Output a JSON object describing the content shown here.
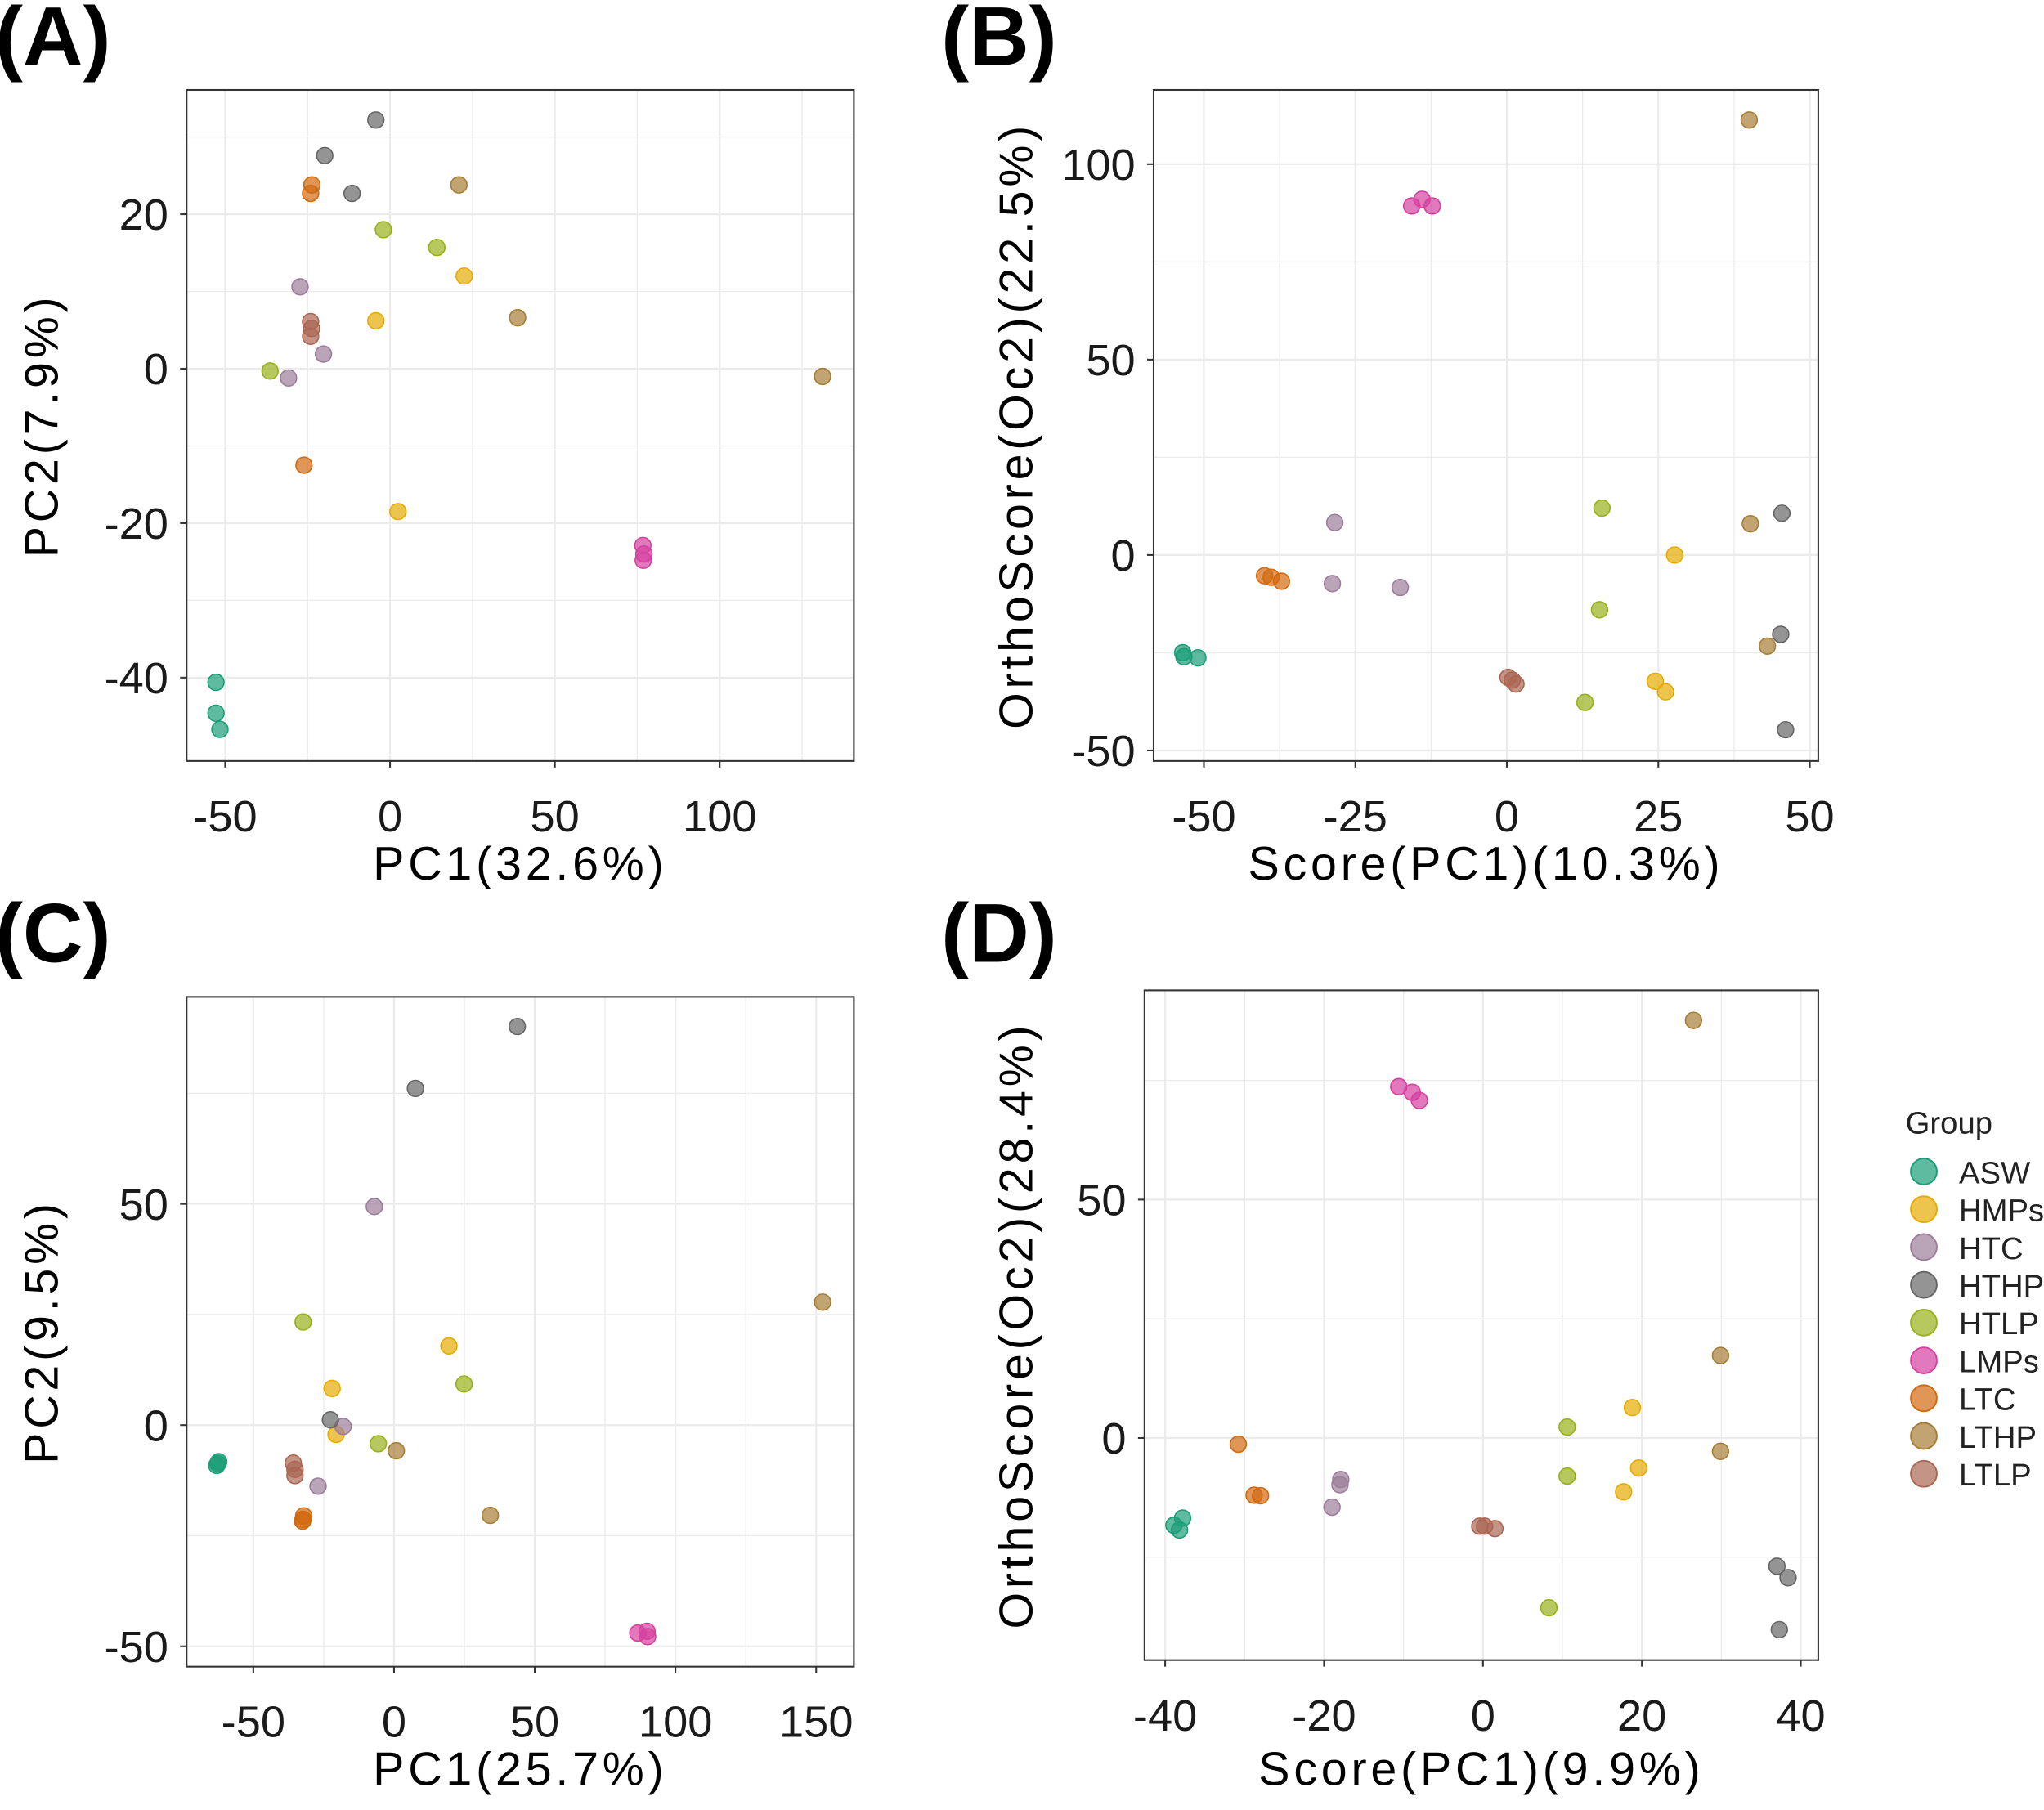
{
  "legend": {
    "title": "Group",
    "groups": [
      {
        "name": "ASW",
        "color": "#1b9e77"
      },
      {
        "name": "HMPs",
        "color": "#e6ab02"
      },
      {
        "name": "HTC",
        "color": "#9c7d9a"
      },
      {
        "name": "HTHP",
        "color": "#666666"
      },
      {
        "name": "HTLP",
        "color": "#98b01a"
      },
      {
        "name": "LMPs",
        "color": "#d6409f"
      },
      {
        "name": "LTC",
        "color": "#d26a10"
      },
      {
        "name": "LTHP",
        "color": "#a67d34"
      },
      {
        "name": "LTLP",
        "color": "#ab6652"
      }
    ]
  },
  "chart_data": [
    {
      "type": "scatter",
      "label": "(A)",
      "xlabel": "PC1(32.6%)",
      "ylabel": "PC2(7.9%)",
      "xlim": [
        -61.7,
        140.7
      ],
      "ylim": [
        -50.8,
        36.1
      ],
      "xticks": [
        -50,
        0,
        50,
        100
      ],
      "yticks": [
        -40,
        -20,
        0,
        20
      ],
      "grid": true,
      "series": [
        {
          "name": "ASW",
          "points": [
            [
              -52.8,
              -40.6
            ],
            [
              -52.8,
              -44.6
            ],
            [
              -51.6,
              -46.7
            ]
          ]
        },
        {
          "name": "HMPs",
          "points": [
            [
              22.5,
              12
            ],
            [
              -4.3,
              6.2
            ],
            [
              2.4,
              -18.5
            ]
          ]
        },
        {
          "name": "HTC",
          "points": [
            [
              -27.3,
              10.6
            ],
            [
              -30.8,
              -1.2
            ],
            [
              -20.2,
              1.9
            ]
          ]
        },
        {
          "name": "HTHP",
          "points": [
            [
              -4.3,
              32.2
            ],
            [
              -19.8,
              27.6
            ],
            [
              -11.5,
              22.7
            ]
          ]
        },
        {
          "name": "HTLP",
          "points": [
            [
              -2,
              18
            ],
            [
              14.2,
              15.7
            ],
            [
              -36.4,
              -0.3
            ]
          ]
        },
        {
          "name": "LMPs",
          "points": [
            [
              76.7,
              -22.9
            ],
            [
              77,
              -24
            ],
            [
              76.8,
              -24.8
            ]
          ]
        },
        {
          "name": "LTC",
          "points": [
            [
              -23.7,
              23.8
            ],
            [
              -24.1,
              22.7
            ],
            [
              -26.1,
              -12.5
            ]
          ]
        },
        {
          "name": "LTHP",
          "points": [
            [
              20.9,
              23.8
            ],
            [
              38.7,
              6.6
            ],
            [
              131.2,
              -1.0
            ]
          ]
        },
        {
          "name": "LTLP",
          "points": [
            [
              -24.1,
              6.1
            ],
            [
              -23.8,
              5.2
            ],
            [
              -24.1,
              4.2
            ]
          ]
        }
      ]
    },
    {
      "type": "scatter",
      "label": "(B)",
      "xlabel": "Score(PC1)(10.3%)",
      "ylabel": "OrthoScore(Oc2)(22.5%)",
      "xlim": [
        -58.3,
        51.4
      ],
      "ylim": [
        -52.7,
        119
      ],
      "xticks": [
        -50,
        -25,
        0,
        25,
        50
      ],
      "yticks": [
        -50,
        0,
        50,
        100
      ],
      "grid": true,
      "series": [
        {
          "name": "ASW",
          "points": [
            [
              -53.5,
              -25
            ],
            [
              -53.3,
              -26
            ],
            [
              -51,
              -26.3
            ]
          ]
        },
        {
          "name": "HMPs",
          "points": [
            [
              27.7,
              0
            ],
            [
              24.5,
              -32.3
            ],
            [
              26.2,
              -35
            ]
          ]
        },
        {
          "name": "HTC",
          "points": [
            [
              -28.4,
              8.3
            ],
            [
              -28.8,
              -7.3
            ],
            [
              -17.6,
              -8.3
            ]
          ]
        },
        {
          "name": "HTHP",
          "points": [
            [
              45.4,
              10.7
            ],
            [
              45.2,
              -20.3
            ],
            [
              46,
              -44.7
            ]
          ]
        },
        {
          "name": "HTLP",
          "points": [
            [
              15.7,
              12
            ],
            [
              15.3,
              -14
            ],
            [
              12.9,
              -37.7
            ]
          ]
        },
        {
          "name": "LMPs",
          "points": [
            [
              -15.7,
              89.3
            ],
            [
              -14,
              91
            ],
            [
              -12.3,
              89.3
            ]
          ]
        },
        {
          "name": "LTC",
          "points": [
            [
              -40,
              -5.3
            ],
            [
              -38.9,
              -5.7
            ],
            [
              -37.2,
              -6.7
            ]
          ]
        },
        {
          "name": "LTHP",
          "points": [
            [
              40,
              111.3
            ],
            [
              40.2,
              8
            ],
            [
              43,
              -23.3
            ]
          ]
        },
        {
          "name": "LTLP",
          "points": [
            [
              0.2,
              -31.3
            ],
            [
              1.5,
              -33
            ],
            [
              0.9,
              -32
            ]
          ]
        }
      ]
    },
    {
      "type": "scatter",
      "label": "(C)",
      "xlabel": "PC1(25.7%)",
      "ylabel": "PC2(9.5%)",
      "xlim": [
        -73.7,
        163.4
      ],
      "ylim": [
        -54.6,
        96.8
      ],
      "xticks": [
        -50,
        0,
        50,
        100,
        150
      ],
      "yticks": [
        -50,
        0,
        50
      ],
      "grid": true,
      "series": [
        {
          "name": "ASW",
          "points": [
            [
              -62.3,
              -8.3
            ],
            [
              -63,
              -9.1
            ],
            [
              -62.6,
              -8.7
            ]
          ]
        },
        {
          "name": "HMPs",
          "points": [
            [
              -22,
              8.3
            ],
            [
              -20.6,
              -2.1
            ],
            [
              19.5,
              17.9
            ]
          ]
        },
        {
          "name": "HTC",
          "points": [
            [
              -7,
              49.4
            ],
            [
              -18.1,
              -0.3
            ],
            [
              -27,
              -13.8
            ]
          ]
        },
        {
          "name": "HTHP",
          "points": [
            [
              43.8,
              90.1
            ],
            [
              7.6,
              76.1
            ],
            [
              -22.6,
              1.2
            ]
          ]
        },
        {
          "name": "HTLP",
          "points": [
            [
              -32.3,
              23.3
            ],
            [
              24.9,
              9.3
            ],
            [
              -5.6,
              -4.2
            ]
          ]
        },
        {
          "name": "LMPs",
          "points": [
            [
              86.6,
              -47
            ],
            [
              89.9,
              -46.6
            ],
            [
              90.1,
              -47.8
            ]
          ]
        },
        {
          "name": "LTC",
          "points": [
            [
              -32.1,
              -20.5
            ],
            [
              -32.3,
              -21.3
            ],
            [
              -32.5,
              -21.7
            ]
          ]
        },
        {
          "name": "LTHP",
          "points": [
            [
              152.3,
              27.8
            ],
            [
              0.8,
              -5.8
            ],
            [
              34.2,
              -20.4
            ]
          ]
        },
        {
          "name": "LTLP",
          "points": [
            [
              -35.8,
              -8.6
            ],
            [
              -35.2,
              -10
            ],
            [
              -35.2,
              -11.4
            ]
          ]
        }
      ]
    },
    {
      "type": "scatter",
      "label": "(D)",
      "xlabel": "Score(PC1)(9.9%)",
      "ylabel": "OrthoScore(Oc2)(28.4%)",
      "xlim": [
        -42.6,
        42.2
      ],
      "ylim": [
        -46.6,
        93.9
      ],
      "xticks": [
        -40,
        -20,
        0,
        20,
        40
      ],
      "yticks": [
        0,
        50
      ],
      "grid": true,
      "series": [
        {
          "name": "ASW",
          "points": [
            [
              -37.8,
              -16.8
            ],
            [
              -38.9,
              -18.3
            ],
            [
              -38.2,
              -19.3
            ]
          ]
        },
        {
          "name": "HMPs",
          "points": [
            [
              18.8,
              6.4
            ],
            [
              19.6,
              -6.3
            ],
            [
              17.7,
              -11.3
            ]
          ]
        },
        {
          "name": "HTC",
          "points": [
            [
              -17.9,
              -8.7
            ],
            [
              -18,
              -9.8
            ],
            [
              -19,
              -14.5
            ]
          ]
        },
        {
          "name": "HTHP",
          "points": [
            [
              37,
              -26.9
            ],
            [
              38.4,
              -29.3
            ],
            [
              37.3,
              -40.2
            ]
          ]
        },
        {
          "name": "HTLP",
          "points": [
            [
              10.6,
              2.3
            ],
            [
              10.6,
              -8
            ],
            [
              8.3,
              -35.6
            ]
          ]
        },
        {
          "name": "LMPs",
          "points": [
            [
              -10.6,
              73.7
            ],
            [
              -8.9,
              72.5
            ],
            [
              -8,
              70.8
            ]
          ]
        },
        {
          "name": "LTC",
          "points": [
            [
              -30.8,
              -1.3
            ],
            [
              -28.8,
              -12
            ],
            [
              -28,
              -12.1
            ]
          ]
        },
        {
          "name": "LTHP",
          "points": [
            [
              26.5,
              87.6
            ],
            [
              29.9,
              17.3
            ],
            [
              29.9,
              -2.8
            ]
          ]
        },
        {
          "name": "LTLP",
          "points": [
            [
              -0.4,
              -18.5
            ],
            [
              0.2,
              -18.5
            ],
            [
              1.5,
              -19
            ]
          ]
        }
      ]
    }
  ]
}
